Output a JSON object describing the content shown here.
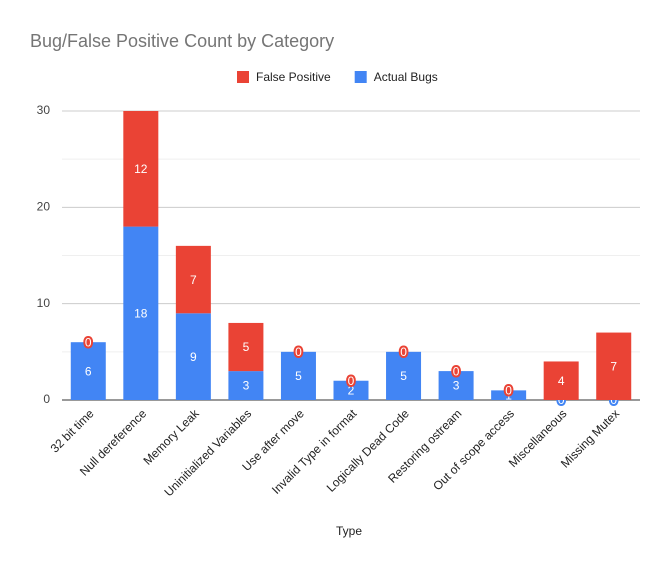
{
  "chart_data": {
    "type": "stacked_bar",
    "title": "Bug/False Positive Count by Category",
    "x_label": "Type",
    "categories": [
      "32 bit time",
      "Null dereference",
      "Memory Leak",
      "Uninitialized Variables",
      "Use after move",
      "Invalid Type in format",
      "Logically Dead Code",
      "Restoring ostream",
      "Out of scope access",
      "Miscellaneous",
      "Missing Mutex"
    ],
    "series": [
      {
        "name": "Actual Bugs",
        "color": "#4285f4",
        "values": [
          6,
          18,
          9,
          3,
          5,
          2,
          5,
          3,
          1,
          0,
          0
        ]
      },
      {
        "name": "False Positive",
        "color": "#ea4335",
        "values": [
          0,
          12,
          7,
          5,
          0,
          0,
          0,
          0,
          0,
          4,
          7
        ]
      }
    ],
    "ylim": [
      0,
      30
    ],
    "yticks": [
      0,
      10,
      20,
      30
    ],
    "y_minor_ticks": [
      5,
      15,
      25
    ],
    "grid": true,
    "legend": "top"
  }
}
